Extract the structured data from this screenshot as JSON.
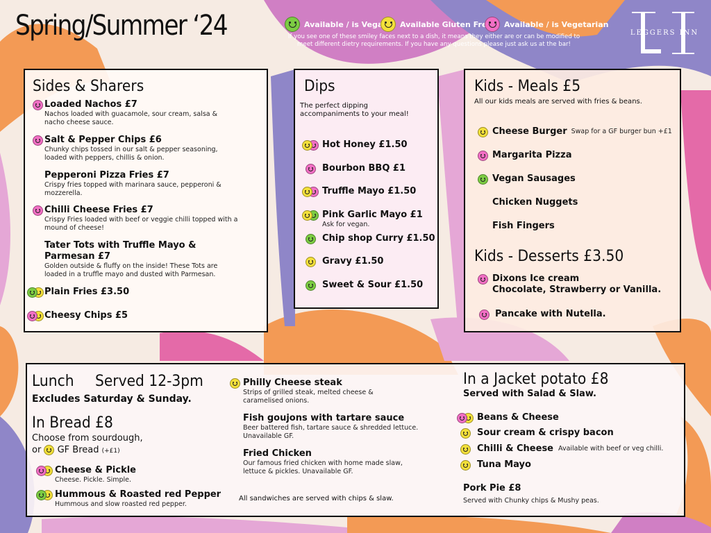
{
  "header": {
    "title": "Spring/Summer ‘24",
    "legend": {
      "vegan": "Available / is Vegan",
      "gluten_free": "Available Gluten Free",
      "vegetarian": "Available / is Vegetarian",
      "note": "If you see one of these smiley faces next to a dish, it means they either are or can be modified to meet different dietry requirements. If you have any questions please just ask us at the bar!"
    },
    "logo_text": "LEGGERS INN"
  },
  "colors": {
    "vegan": "#7ccc43",
    "gluten_free": "#f3df3a",
    "vegetarian": "#f26fc4"
  },
  "sides": {
    "heading": "Sides & Sharers",
    "items": [
      {
        "name": "Loaded Nachos £7",
        "desc": "Nachos loaded with guacamole, sour cream, salsa & nacho cheese sauce.",
        "icons": [
          "vegetarian"
        ]
      },
      {
        "name": "Salt & Pepper Chips £6",
        "desc": "Chunky chips tossed in our salt & pepper seasoning, loaded with peppers, chillis & onion.",
        "icons": [
          "vegetarian"
        ]
      },
      {
        "name": "Pepperoni Pizza Fries £7",
        "desc": "Crispy fries topped with marinara sauce, pepperoni & mozzerella.",
        "icons": []
      },
      {
        "name": "Chilli Cheese Fries £7",
        "desc": "Crispy Fries loaded with beef or veggie chilli topped with a mound of cheese!",
        "icons": [
          "vegetarian"
        ]
      },
      {
        "name": "Tater Tots with Truffle Mayo & Parmesan £7",
        "desc": "Golden outside & fluffy on the inside! These Tots are loaded in a truffle mayo and dusted with Parmesan.",
        "icons": []
      },
      {
        "name": "Plain Fries £3.50",
        "desc": "",
        "icons": [
          "vegan",
          "gluten_free"
        ]
      },
      {
        "name": "Cheesy Chips £5",
        "desc": "",
        "icons": [
          "vegetarian",
          "gluten_free"
        ]
      }
    ]
  },
  "dips": {
    "heading": "Dips",
    "subtitle": "The perfect dipping accompaniments to your meal!",
    "items": [
      {
        "name": "Hot Honey £1.50",
        "note": "",
        "icons": [
          "gluten_free",
          "vegetarian"
        ]
      },
      {
        "name": "Bourbon BBQ £1",
        "note": "",
        "icons": [
          "vegetarian"
        ]
      },
      {
        "name": "Truffle Mayo £1.50",
        "note": "",
        "icons": [
          "gluten_free",
          "vegetarian"
        ]
      },
      {
        "name": "Pink Garlic Mayo £1",
        "note": "Ask for vegan.",
        "icons": [
          "gluten_free",
          "vegan"
        ]
      },
      {
        "name": "Chip shop Curry £1.50",
        "note": "",
        "icons": [
          "vegan"
        ]
      },
      {
        "name": "Gravy £1.50",
        "note": "",
        "icons": [
          "gluten_free"
        ]
      },
      {
        "name": "Sweet & Sour £1.50",
        "note": "",
        "icons": [
          "vegan"
        ]
      }
    ]
  },
  "kids": {
    "heading": "Kids - Meals  £5",
    "subtitle": "All our kids meals are served with fries & beans.",
    "items": [
      {
        "name": "Cheese Burger",
        "note": "Swap for a GF burger bun +£1",
        "icons": [
          "gluten_free"
        ]
      },
      {
        "name": "Margarita Pizza",
        "note": "",
        "icons": [
          "vegetarian"
        ]
      },
      {
        "name": "Vegan Sausages",
        "note": "",
        "icons": [
          "vegan"
        ]
      },
      {
        "name": "Chicken Nuggets",
        "note": "",
        "icons": []
      },
      {
        "name": "Fish Fingers",
        "note": "",
        "icons": []
      }
    ],
    "desserts_heading": "Kids - Desserts £3.50",
    "desserts": [
      {
        "name": "Dixons Ice cream",
        "line2": "Chocolate, Strawberry or Vanilla.",
        "icons": [
          "vegetarian"
        ]
      },
      {
        "name": "Pancake with Nutella.",
        "line2": "",
        "icons": [
          "vegetarian"
        ]
      }
    ]
  },
  "lunch": {
    "heading": "Lunch",
    "served": "Served 12-3pm",
    "excludes": "Excludes Saturday & Sunday.",
    "bread_heading": "In Bread £8",
    "bread_choice": "Choose from sourdough,",
    "bread_or": "or",
    "gf_bread": "GF Bread",
    "gf_bread_price": "(+£1)",
    "left_items": [
      {
        "name": "Cheese & Pickle",
        "desc": "Cheese. Pickle. Simple.",
        "icons": [
          "vegetarian",
          "gluten_free"
        ]
      },
      {
        "name": "Hummous & Roasted red Pepper",
        "desc": "Hummous and slow roasted red pepper.",
        "icons": [
          "vegan",
          "gluten_free"
        ]
      }
    ],
    "mid_items": [
      {
        "name": "Philly Cheese steak",
        "desc": "Strips of grilled steak, melted cheese & caramelised onions.",
        "icons": [
          "gluten_free"
        ]
      },
      {
        "name": "Fish goujons with tartare sauce",
        "desc": "Beer battered fish, tartare sauce & shredded lettuce. Unavailable GF.",
        "icons": []
      },
      {
        "name": "Fried Chicken",
        "desc": "Our famous fried chicken with home made slaw, lettuce & pickles. Unavailable GF.",
        "icons": []
      }
    ],
    "sandwich_note": "All sandwiches are served with chips & slaw."
  },
  "jacket": {
    "heading": "In a Jacket potato £8",
    "subtitle": "Served with Salad & Slaw.",
    "items": [
      {
        "name": "Beans & Cheese",
        "note": "",
        "icons": [
          "vegetarian",
          "gluten_free"
        ]
      },
      {
        "name": "Sour cream & crispy bacon",
        "note": "",
        "icons": [
          "gluten_free"
        ]
      },
      {
        "name": "Chilli & Cheese",
        "note": "Available with beef or veg chilli.",
        "icons": [
          "gluten_free"
        ]
      },
      {
        "name": "Tuna Mayo",
        "note": "",
        "icons": [
          "gluten_free"
        ]
      }
    ],
    "pork_pie": "Pork Pie £8",
    "pork_pie_desc": "Served with Chunky chips & Mushy peas."
  }
}
